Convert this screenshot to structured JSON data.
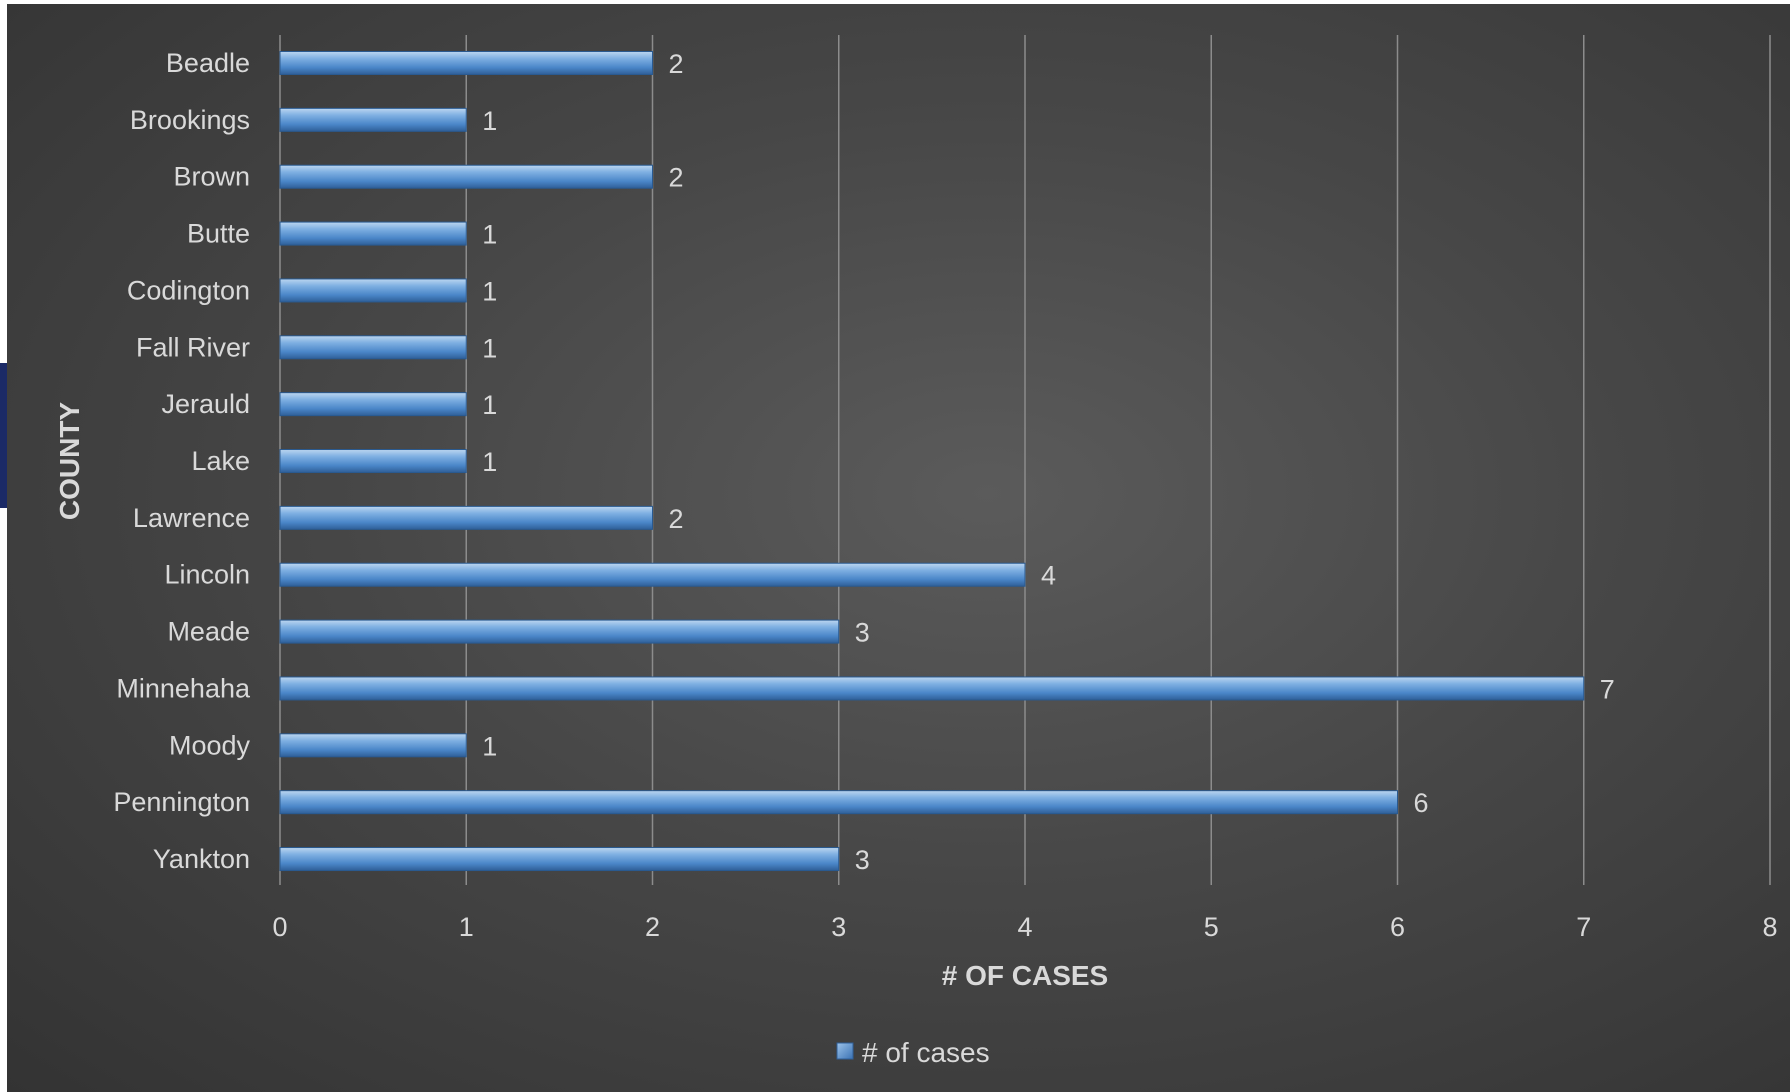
{
  "chart_data": {
    "type": "bar",
    "orientation": "horizontal",
    "categories": [
      "Beadle",
      "Brookings",
      "Brown",
      "Butte",
      "Codington",
      "Fall River",
      "Jerauld",
      "Lake",
      "Lawrence",
      "Lincoln",
      "Meade",
      "Minnehaha",
      "Moody",
      "Pennington",
      "Yankton"
    ],
    "series": [
      {
        "name": "# of cases",
        "values": [
          2,
          1,
          2,
          1,
          1,
          1,
          1,
          1,
          2,
          4,
          3,
          7,
          1,
          6,
          3
        ]
      }
    ],
    "title": "",
    "xlabel": "# OF CASES",
    "ylabel": "COUNTY",
    "xlim": [
      0,
      8
    ],
    "xticks": [
      "0",
      "1",
      "2",
      "3",
      "4",
      "5",
      "6",
      "7",
      "8"
    ],
    "grid": "vertical",
    "legend": "bottom",
    "data_labels": true,
    "colors": {
      "background": "#404040",
      "bar": "#5b9bd5",
      "text": "#d9d9d9",
      "grid": "#8c8c8c"
    }
  }
}
